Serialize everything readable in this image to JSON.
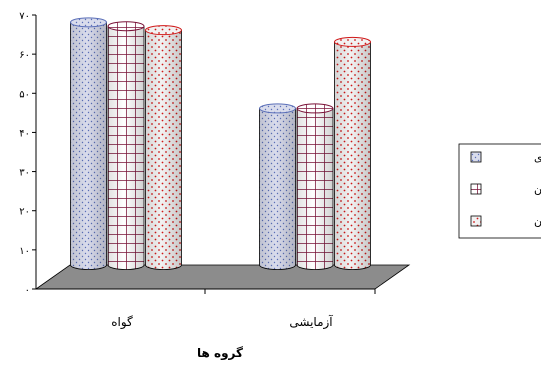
{
  "chart_data": {
    "type": "bar",
    "style": "3d-cylinder",
    "categories": [
      "گواه",
      "آزمایشی"
    ],
    "series": [
      {
        "name": "پیش‌آزمون",
        "values": [
          60,
          57
        ],
        "color": "#f2f2f2",
        "pattern": "red-dots"
      },
      {
        "name": "پس‌آزمون",
        "values": [
          61,
          40
        ],
        "color": "#ffffff",
        "pattern": "maroon-grid"
      },
      {
        "name": "پیگیری",
        "values": [
          62,
          40
        ],
        "color": "#d9dcec",
        "pattern": "blue-dots"
      }
    ],
    "yticks": [
      "۰",
      "۱۰",
      "۲۰",
      "۳۰",
      "۴۰",
      "۵۰",
      "۶۰",
      "۷۰"
    ],
    "ylim": [
      0,
      70
    ],
    "xlabel": "گروه ها",
    "ylabel": "",
    "legend": {
      "position": "right",
      "items": [
        "پیگیری",
        "پس‌آزمون",
        "پیش‌آزمون"
      ]
    },
    "floor_color": "#8c8c8c",
    "grid": false
  }
}
